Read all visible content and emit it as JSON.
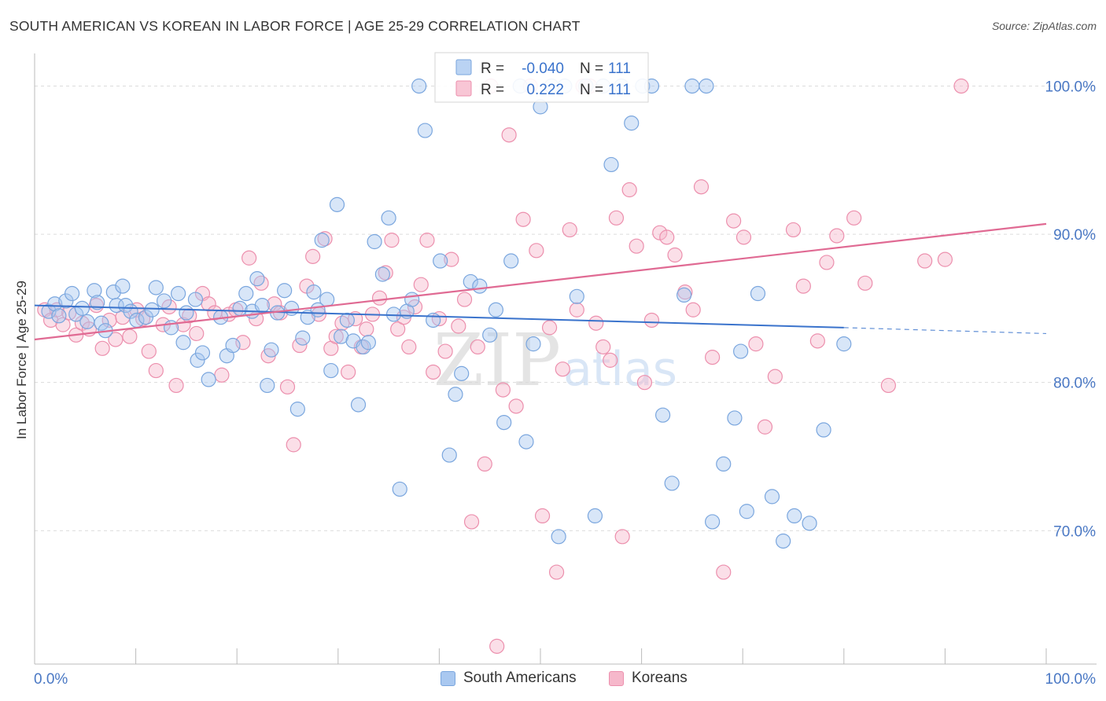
{
  "header": {
    "title": "SOUTH AMERICAN VS KOREAN IN LABOR FORCE | AGE 25-29 CORRELATION CHART",
    "source": "Source: ZipAtlas.com"
  },
  "watermark": {
    "zip": "ZIP",
    "atlas": "atlas"
  },
  "colors": {
    "blue_fill": "#a9c8f0",
    "blue_stroke": "#7aa6de",
    "blue_line": "#3a73cc",
    "pink_fill": "#f6b8cb",
    "pink_stroke": "#ec8fad",
    "pink_line": "#e06a93",
    "tick_label": "#4a78c4",
    "grid": "#dcdcdc"
  },
  "legend": {
    "rows": [
      {
        "r_label": "R = ",
        "r_value": "-0.040",
        "n_label": "N = ",
        "n_value": "111",
        "color": "blue"
      },
      {
        "r_label": "R = ",
        "r_value": " 0.222",
        "n_label": "N = ",
        "n_value": "111",
        "color": "pink"
      }
    ]
  },
  "bottom_legend": {
    "items": [
      {
        "label": "South Americans",
        "color": "blue"
      },
      {
        "label": "Koreans",
        "color": "pink"
      }
    ]
  },
  "chart_data": {
    "type": "scatter",
    "title": "SOUTH AMERICAN VS KOREAN IN LABOR FORCE | AGE 25-29 CORRELATION CHART",
    "xlabel": "",
    "ylabel": "In Labor Force | Age 25-29",
    "xlim": [
      0,
      100
    ],
    "ylim": [
      61,
      102.2
    ],
    "x_tick_labels": [
      {
        "value": 0,
        "label": "0.0%"
      },
      {
        "value": 100,
        "label": "100.0%"
      }
    ],
    "y_tick_labels": [
      {
        "value": 70,
        "label": "70.0%"
      },
      {
        "value": 80,
        "label": "80.0%"
      },
      {
        "value": 90,
        "label": "90.0%"
      },
      {
        "value": 100,
        "label": "100.0%"
      }
    ],
    "grid": "horizontal dashed",
    "legend_position": "top-center",
    "series": [
      {
        "name": "South Americans",
        "color": "#a9c8f0",
        "r": -0.04,
        "n": 111,
        "trend": {
          "x0": 0,
          "y0": 85.2,
          "x1": 80,
          "y1": 83.7,
          "dashed_to_x": 100,
          "dashed_to_y": 83.3
        },
        "points": [
          [
            1.4,
            84.8
          ],
          [
            2.0,
            85.3
          ],
          [
            2.4,
            84.5
          ],
          [
            3.1,
            85.5
          ],
          [
            3.7,
            86.0
          ],
          [
            4.1,
            84.6
          ],
          [
            4.7,
            85.0
          ],
          [
            5.2,
            84.1
          ],
          [
            5.9,
            86.2
          ],
          [
            6.2,
            85.4
          ],
          [
            6.6,
            84.0
          ],
          [
            7.0,
            83.5
          ],
          [
            7.8,
            86.1
          ],
          [
            8.1,
            85.2
          ],
          [
            8.7,
            86.5
          ],
          [
            9.0,
            85.2
          ],
          [
            9.5,
            84.8
          ],
          [
            10.1,
            84.2
          ],
          [
            11.0,
            84.4
          ],
          [
            11.6,
            84.9
          ],
          [
            12.0,
            86.4
          ],
          [
            12.8,
            85.5
          ],
          [
            13.5,
            83.7
          ],
          [
            14.2,
            86.0
          ],
          [
            14.7,
            82.7
          ],
          [
            15.0,
            84.7
          ],
          [
            15.9,
            85.6
          ],
          [
            16.1,
            81.5
          ],
          [
            16.6,
            82.0
          ],
          [
            17.2,
            80.2
          ],
          [
            18.4,
            84.4
          ],
          [
            19.0,
            81.8
          ],
          [
            19.6,
            82.5
          ],
          [
            20.3,
            85.0
          ],
          [
            20.9,
            86.0
          ],
          [
            21.5,
            84.8
          ],
          [
            22.0,
            87.0
          ],
          [
            22.5,
            85.2
          ],
          [
            23.0,
            79.8
          ],
          [
            23.4,
            82.2
          ],
          [
            24.0,
            84.7
          ],
          [
            24.7,
            86.2
          ],
          [
            25.4,
            85.0
          ],
          [
            26.0,
            78.2
          ],
          [
            26.5,
            83.0
          ],
          [
            27.0,
            84.4
          ],
          [
            27.6,
            86.1
          ],
          [
            28.0,
            84.9
          ],
          [
            28.4,
            89.6
          ],
          [
            28.9,
            85.6
          ],
          [
            29.3,
            80.8
          ],
          [
            29.9,
            92.0
          ],
          [
            30.3,
            83.1
          ],
          [
            30.9,
            84.2
          ],
          [
            31.5,
            82.8
          ],
          [
            32.0,
            78.5
          ],
          [
            32.5,
            82.4
          ],
          [
            33.0,
            82.7
          ],
          [
            33.6,
            89.5
          ],
          [
            34.4,
            87.3
          ],
          [
            35.0,
            91.1
          ],
          [
            35.5,
            84.6
          ],
          [
            36.1,
            72.8
          ],
          [
            36.8,
            84.8
          ],
          [
            37.3,
            85.6
          ],
          [
            38.0,
            100.0
          ],
          [
            38.6,
            97.0
          ],
          [
            39.4,
            84.2
          ],
          [
            40.1,
            88.2
          ],
          [
            41.0,
            75.1
          ],
          [
            41.6,
            79.2
          ],
          [
            42.2,
            80.6
          ],
          [
            43.1,
            86.8
          ],
          [
            44.0,
            86.5
          ],
          [
            45.0,
            83.2
          ],
          [
            45.6,
            84.9
          ],
          [
            46.4,
            77.3
          ],
          [
            47.1,
            88.2
          ],
          [
            48.0,
            100.0
          ],
          [
            48.6,
            76.0
          ],
          [
            49.3,
            82.6
          ],
          [
            50.0,
            98.6
          ],
          [
            51.1,
            100.0
          ],
          [
            51.8,
            69.6
          ],
          [
            52.4,
            100.0
          ],
          [
            53.6,
            85.8
          ],
          [
            54.5,
            100.0
          ],
          [
            55.4,
            71.0
          ],
          [
            56.2,
            100.0
          ],
          [
            57.0,
            94.7
          ],
          [
            58.0,
            100.0
          ],
          [
            59.0,
            97.5
          ],
          [
            60.1,
            100.0
          ],
          [
            61.0,
            100.0
          ],
          [
            62.1,
            77.8
          ],
          [
            63.0,
            73.2
          ],
          [
            64.2,
            85.9
          ],
          [
            65.0,
            100.0
          ],
          [
            66.4,
            100.0
          ],
          [
            67.0,
            70.6
          ],
          [
            68.1,
            74.5
          ],
          [
            69.2,
            77.6
          ],
          [
            69.8,
            82.1
          ],
          [
            70.4,
            71.3
          ],
          [
            71.5,
            86.0
          ],
          [
            72.9,
            72.3
          ],
          [
            74.0,
            69.3
          ],
          [
            75.1,
            71.0
          ],
          [
            76.6,
            70.5
          ],
          [
            78.0,
            76.8
          ],
          [
            80.0,
            82.6
          ]
        ]
      },
      {
        "name": "Koreans",
        "color": "#f6b8cb",
        "r": 0.222,
        "n": 111,
        "trend": {
          "x0": 0,
          "y0": 82.9,
          "x1": 100,
          "y1": 90.7
        },
        "points": [
          [
            1.0,
            84.9
          ],
          [
            1.6,
            84.2
          ],
          [
            2.2,
            84.9
          ],
          [
            2.8,
            83.9
          ],
          [
            3.4,
            84.7
          ],
          [
            4.1,
            83.2
          ],
          [
            4.7,
            84.0
          ],
          [
            5.4,
            83.6
          ],
          [
            6.1,
            85.2
          ],
          [
            6.7,
            82.3
          ],
          [
            7.4,
            84.2
          ],
          [
            8.0,
            82.9
          ],
          [
            8.7,
            84.4
          ],
          [
            9.4,
            83.1
          ],
          [
            10.1,
            84.9
          ],
          [
            10.7,
            84.3
          ],
          [
            11.3,
            82.1
          ],
          [
            12.0,
            80.8
          ],
          [
            12.7,
            83.9
          ],
          [
            13.3,
            85.1
          ],
          [
            14.0,
            79.8
          ],
          [
            14.7,
            83.9
          ],
          [
            15.3,
            84.5
          ],
          [
            16.0,
            83.3
          ],
          [
            16.6,
            86.0
          ],
          [
            17.2,
            85.3
          ],
          [
            17.8,
            84.7
          ],
          [
            18.5,
            80.5
          ],
          [
            19.2,
            84.6
          ],
          [
            19.9,
            84.9
          ],
          [
            20.6,
            82.7
          ],
          [
            21.2,
            88.4
          ],
          [
            21.9,
            84.3
          ],
          [
            22.4,
            86.7
          ],
          [
            23.1,
            81.8
          ],
          [
            23.7,
            85.3
          ],
          [
            24.3,
            84.7
          ],
          [
            25.0,
            79.7
          ],
          [
            25.6,
            75.8
          ],
          [
            26.2,
            82.5
          ],
          [
            26.9,
            86.5
          ],
          [
            27.5,
            88.5
          ],
          [
            28.1,
            84.6
          ],
          [
            28.7,
            89.7
          ],
          [
            29.3,
            82.3
          ],
          [
            29.8,
            83.1
          ],
          [
            30.4,
            84.0
          ],
          [
            31.0,
            80.7
          ],
          [
            31.7,
            84.3
          ],
          [
            32.3,
            82.4
          ],
          [
            32.8,
            83.6
          ],
          [
            33.4,
            84.6
          ],
          [
            34.1,
            85.7
          ],
          [
            34.7,
            87.4
          ],
          [
            35.3,
            89.6
          ],
          [
            35.9,
            83.6
          ],
          [
            36.5,
            84.4
          ],
          [
            37.0,
            82.4
          ],
          [
            37.6,
            85.1
          ],
          [
            38.2,
            86.6
          ],
          [
            38.8,
            89.6
          ],
          [
            39.4,
            80.7
          ],
          [
            40.0,
            84.3
          ],
          [
            40.6,
            82.1
          ],
          [
            41.2,
            88.3
          ],
          [
            41.9,
            83.8
          ],
          [
            42.5,
            85.6
          ],
          [
            43.2,
            70.6
          ],
          [
            43.8,
            82.4
          ],
          [
            44.5,
            74.5
          ],
          [
            45.1,
            100.0
          ],
          [
            45.7,
            62.2
          ],
          [
            46.3,
            79.5
          ],
          [
            46.9,
            96.7
          ],
          [
            47.6,
            78.4
          ],
          [
            48.3,
            91.0
          ],
          [
            49.0,
            100.0
          ],
          [
            49.6,
            88.9
          ],
          [
            50.2,
            71.0
          ],
          [
            50.9,
            83.7
          ],
          [
            51.6,
            67.2
          ],
          [
            52.2,
            80.9
          ],
          [
            52.9,
            90.3
          ],
          [
            53.6,
            84.9
          ],
          [
            54.2,
            100.0
          ],
          [
            54.9,
            100.0
          ],
          [
            55.5,
            84.0
          ],
          [
            56.2,
            82.4
          ],
          [
            56.9,
            81.5
          ],
          [
            57.5,
            91.1
          ],
          [
            58.1,
            69.6
          ],
          [
            58.8,
            93.0
          ],
          [
            59.5,
            89.2
          ],
          [
            60.3,
            80.0
          ],
          [
            61.0,
            84.2
          ],
          [
            61.8,
            90.1
          ],
          [
            62.5,
            89.8
          ],
          [
            63.3,
            88.6
          ],
          [
            64.3,
            86.1
          ],
          [
            65.1,
            84.9
          ],
          [
            65.9,
            93.2
          ],
          [
            67.0,
            81.7
          ],
          [
            68.1,
            67.2
          ],
          [
            69.1,
            90.9
          ],
          [
            70.1,
            89.8
          ],
          [
            71.3,
            82.6
          ],
          [
            72.2,
            77.0
          ],
          [
            73.2,
            80.4
          ],
          [
            75.0,
            90.3
          ],
          [
            76.0,
            86.5
          ],
          [
            77.4,
            82.8
          ],
          [
            78.3,
            88.1
          ],
          [
            79.3,
            89.9
          ],
          [
            81.0,
            91.1
          ],
          [
            82.1,
            86.7
          ],
          [
            84.4,
            79.8
          ],
          [
            88.0,
            88.2
          ],
          [
            90.0,
            88.3
          ],
          [
            91.6,
            100.0
          ]
        ]
      }
    ]
  }
}
